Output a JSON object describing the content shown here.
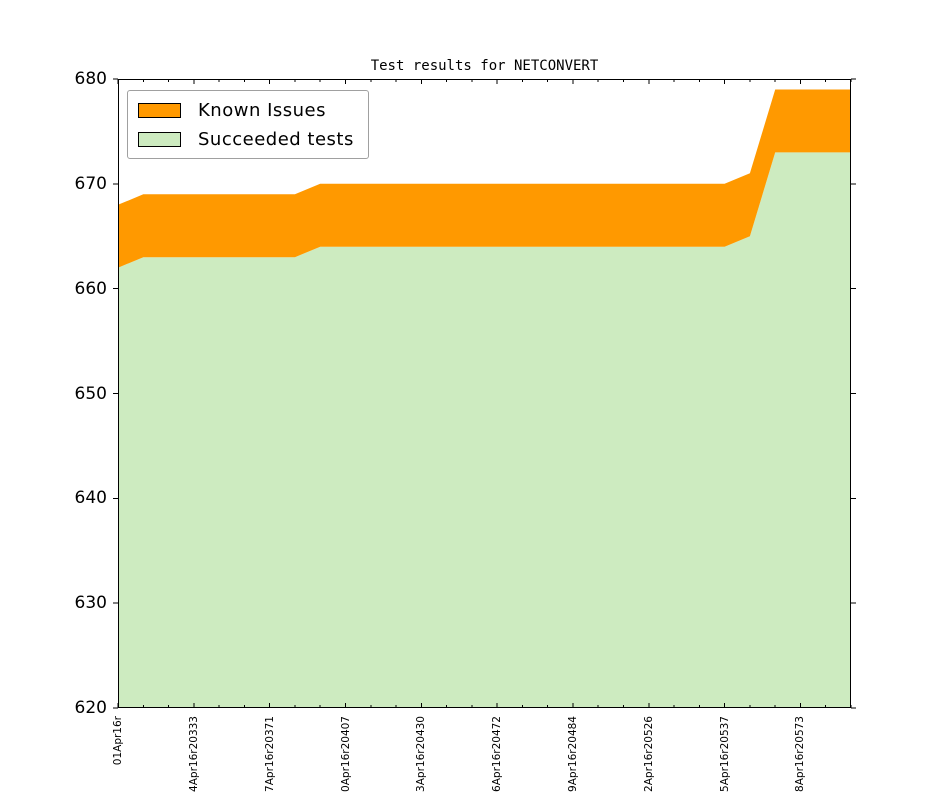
{
  "figure": {
    "background": "#ffffff"
  },
  "title": "Test results for NETCONVERT",
  "legend": {
    "position": "upper-left",
    "items": [
      {
        "label": "Known Issues",
        "color": "#ff9900",
        "swatch_border": "#000000"
      },
      {
        "label": "Succeeded tests",
        "color": "#cdebc0",
        "swatch_border": "#000000"
      }
    ]
  },
  "chart_data": {
    "type": "area",
    "stacked": true,
    "title": "Test results for NETCONVERT",
    "xlabel": "",
    "ylabel": "",
    "ylim": [
      620,
      680
    ],
    "y_ticks": [
      620,
      630,
      640,
      650,
      660,
      670,
      680
    ],
    "grid": false,
    "legend_position": "upper-left",
    "n_points": 30,
    "x_minor_tick_every": 1,
    "x_major_tick_every": 3,
    "series": [
      {
        "name": "Succeeded tests",
        "color": "#cdebc0",
        "values": [
          662,
          663,
          663,
          663,
          663,
          663,
          663,
          663,
          664,
          664,
          664,
          664,
          664,
          664,
          664,
          664,
          664,
          664,
          664,
          664,
          664,
          664,
          664,
          664,
          664,
          665,
          673,
          673,
          673,
          673
        ]
      },
      {
        "name": "Known Issues",
        "color": "#ff9900",
        "stacked_on": "Succeeded tests",
        "values": [
          6,
          6,
          6,
          6,
          6,
          6,
          6,
          6,
          6,
          6,
          6,
          6,
          6,
          6,
          6,
          6,
          6,
          6,
          6,
          6,
          6,
          6,
          6,
          6,
          6,
          6,
          6,
          6,
          6,
          6
        ]
      }
    ],
    "totals": [
      668,
      669,
      669,
      669,
      669,
      669,
      669,
      669,
      670,
      670,
      670,
      670,
      670,
      670,
      670,
      670,
      670,
      670,
      670,
      670,
      670,
      670,
      670,
      670,
      670,
      671,
      679,
      679,
      679,
      679
    ],
    "x_tick_labels": [
      {
        "day": 0,
        "label": "01Apr16r"
      },
      {
        "day": 3,
        "label": "4Apr16r20333"
      },
      {
        "day": 6,
        "label": "7Apr16r20371"
      },
      {
        "day": 9,
        "label": "0Apr16r20407"
      },
      {
        "day": 12,
        "label": "3Apr16r20430"
      },
      {
        "day": 15,
        "label": "6Apr16r20472"
      },
      {
        "day": 18,
        "label": "9Apr16r20484"
      },
      {
        "day": 21,
        "label": "2Apr16r20526"
      },
      {
        "day": 24,
        "label": "5Apr16r20537"
      },
      {
        "day": 27,
        "label": "8Apr16r20573"
      }
    ]
  }
}
